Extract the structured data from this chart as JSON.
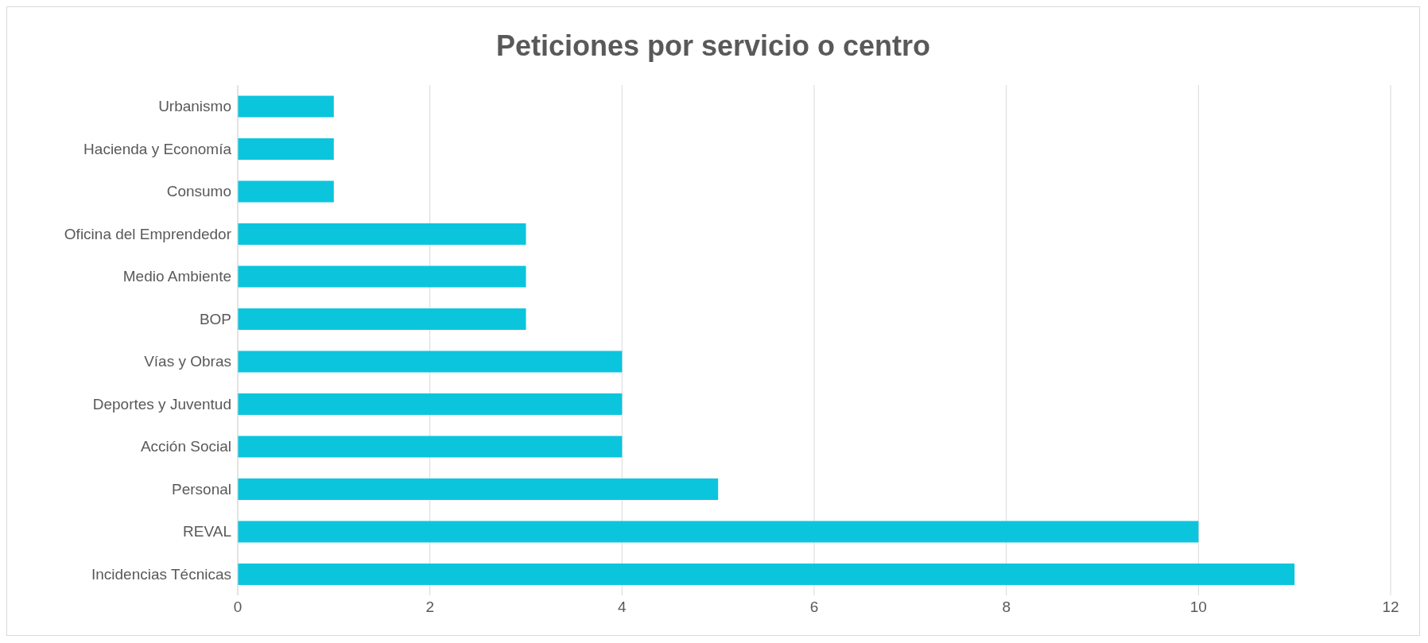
{
  "chart_data": {
    "type": "bar",
    "orientation": "horizontal",
    "title": "Peticiones por servicio o centro",
    "categories": [
      "Urbanismo",
      "Hacienda y Economía",
      "Consumo",
      "Oficina del Emprendedor",
      "Medio Ambiente",
      "BOP",
      "Vías y Obras",
      "Deportes y Juventud",
      "Acción Social",
      "Personal",
      "REVAL",
      "Incidencias Técnicas"
    ],
    "values": [
      1,
      1,
      1,
      3,
      3,
      3,
      4,
      4,
      4,
      5,
      10,
      11
    ],
    "color": "#0bc5dd",
    "xlim": [
      0,
      12
    ],
    "xticks": [
      0,
      2,
      4,
      6,
      8,
      10,
      12
    ],
    "grid": "x"
  }
}
